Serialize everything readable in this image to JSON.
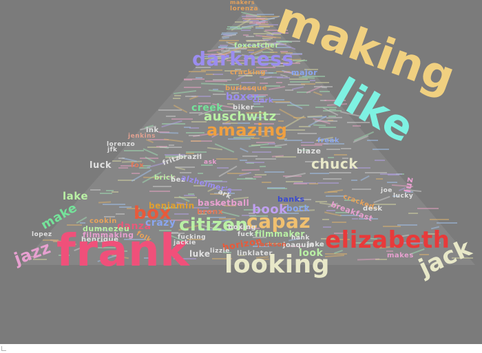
{
  "words": [
    {
      "text": "makers",
      "color": "#e7a25b"
    },
    {
      "text": "lorenza",
      "color": "#e7a25b"
    },
    {
      "text": "making",
      "color": "#f0d080"
    },
    {
      "text": "like",
      "color": "#7ef2e2"
    },
    {
      "text": "darkness",
      "color": "#9b8df0"
    },
    {
      "text": "foxcatcher",
      "color": "#b9f0a4"
    },
    {
      "text": "cracking",
      "color": "#e7a25b"
    },
    {
      "text": "major",
      "color": "#8aa6f0"
    },
    {
      "text": "burlesque",
      "color": "#e7a25b"
    },
    {
      "text": "boxer",
      "color": "#9b8df0"
    },
    {
      "text": "clark",
      "color": "#9b8df0"
    },
    {
      "text": "creek",
      "color": "#74e39a"
    },
    {
      "text": "biker",
      "color": "#e0e0e0"
    },
    {
      "text": "auschwitz",
      "color": "#b9f0a4"
    },
    {
      "text": "amazing",
      "color": "#f0a040"
    },
    {
      "text": "ink",
      "color": "#e0e0e0"
    },
    {
      "text": "jenkins",
      "color": "#e0a090"
    },
    {
      "text": "lorenzo",
      "color": "#e0e0e0"
    },
    {
      "text": "jfk",
      "color": "#e0e0e0"
    },
    {
      "text": "freak",
      "color": "#8aa6f0"
    },
    {
      "text": "blaze",
      "color": "#e0e0e0"
    },
    {
      "text": "luck",
      "color": "#e0e0e0"
    },
    {
      "text": "fox",
      "color": "#e07a5a"
    },
    {
      "text": "fritz",
      "color": "#e0e0e0"
    },
    {
      "text": "brazil",
      "color": "#e0e0e0"
    },
    {
      "text": "ask",
      "color": "#e7a0d0"
    },
    {
      "text": "brick",
      "color": "#b9f0a4"
    },
    {
      "text": "bez",
      "color": "#e0e0e0"
    },
    {
      "text": "alzheimer's",
      "color": "#9b8df0"
    },
    {
      "text": "ark",
      "color": "#e0e0e0"
    },
    {
      "text": "chuck",
      "color": "#e8e8c8"
    },
    {
      "text": "lake",
      "color": "#b9f0a4"
    },
    {
      "text": "luz",
      "color": "#e7a0d0"
    },
    {
      "text": "lucky",
      "color": "#e0e0e0"
    },
    {
      "text": "benjamin",
      "color": "#e0a030"
    },
    {
      "text": "basketball",
      "color": "#e7a0d0"
    },
    {
      "text": "bronx",
      "color": "#e07a5a"
    },
    {
      "text": "banks",
      "color": "#3a4ad0"
    },
    {
      "text": "bock",
      "color": "#8aa6f0"
    },
    {
      "text": "box",
      "color": "#e85a3a"
    },
    {
      "text": "make",
      "color": "#74e39a"
    },
    {
      "text": "book",
      "color": "#c0a0f0"
    },
    {
      "text": "cracked",
      "color": "#e7a25b"
    },
    {
      "text": "breakfast",
      "color": "#e7a0d0"
    },
    {
      "text": "desk",
      "color": "#e0e0e0"
    },
    {
      "text": "citizen",
      "color": "#b9f0a4"
    },
    {
      "text": "capaz",
      "color": "#f0c070"
    },
    {
      "text": "boxing",
      "color": "#e0e0e0"
    },
    {
      "text": "danza",
      "color": "#e85a7a"
    },
    {
      "text": "crazy",
      "color": "#8aa6f0"
    },
    {
      "text": "folk",
      "color": "#e7a25b"
    },
    {
      "text": "dumnezeu",
      "color": "#b9f0a4"
    },
    {
      "text": "filmmaking",
      "color": "#e7a0d0"
    },
    {
      "text": "filmmaker",
      "color": "#b9f0a4"
    },
    {
      "text": "henrique",
      "color": "#e0e0e0"
    },
    {
      "text": "lopez",
      "color": "#e0e0e0"
    },
    {
      "text": "cookin",
      "color": "#e7a25b"
    },
    {
      "text": "jazz",
      "color": "#e7a0d0"
    },
    {
      "text": "frank",
      "color": "#f0507a"
    },
    {
      "text": "jackie",
      "color": "#e0e0e0"
    },
    {
      "text": "luke",
      "color": "#e0e0e0"
    },
    {
      "text": "horizon",
      "color": "#e85a3a"
    },
    {
      "text": "fuck",
      "color": "#e0e0e0"
    },
    {
      "text": "lizzie",
      "color": "#e0e0e0"
    },
    {
      "text": "fucking",
      "color": "#e0e0e0"
    },
    {
      "text": "linklater",
      "color": "#e0e0e0"
    },
    {
      "text": "looking",
      "color": "#e8e8c8"
    },
    {
      "text": "hank",
      "color": "#e0e0e0"
    },
    {
      "text": "joaquin",
      "color": "#e0e0e0"
    },
    {
      "text": "jackson",
      "color": "#e85a3a"
    },
    {
      "text": "jake",
      "color": "#e0e0e0"
    },
    {
      "text": "look",
      "color": "#b9f0a4"
    },
    {
      "text": "elizabeth",
      "color": "#e83a3a"
    },
    {
      "text": "makes",
      "color": "#e7a0d0"
    },
    {
      "text": "jack",
      "color": "#e8e8c8"
    },
    {
      "text": "joe",
      "color": "#e0e0e0"
    }
  ]
}
